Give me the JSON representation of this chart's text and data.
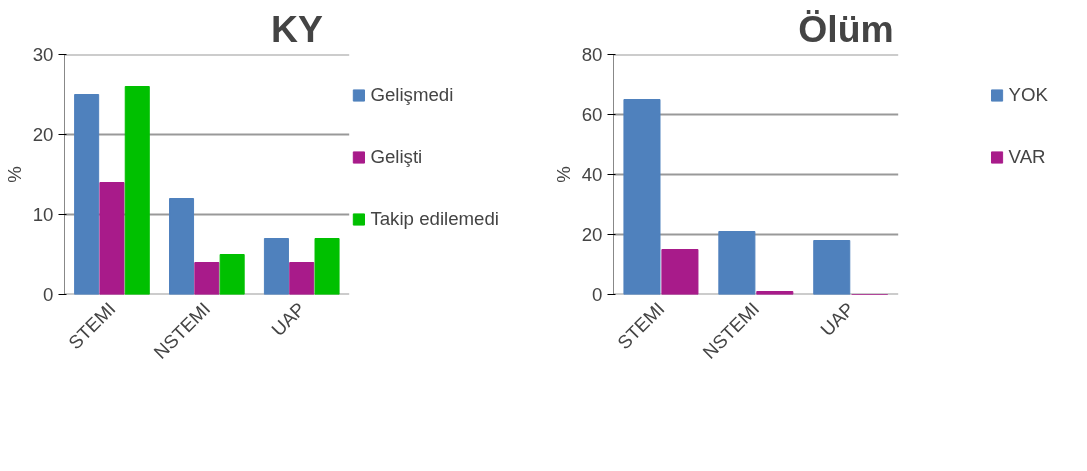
{
  "chart_data": [
    {
      "type": "bar",
      "title": "KY",
      "ylabel": "%",
      "categories": [
        "STEMI",
        "NSTEMI",
        "UAP"
      ],
      "series": [
        {
          "name": "Gelişmedi",
          "color": "#4f81bd",
          "values": [
            25,
            12,
            7
          ]
        },
        {
          "name": "Gelişti",
          "color": "#a81b8a",
          "values": [
            14,
            4,
            4
          ]
        },
        {
          "name": "Takip edilemedi",
          "color": "#00c000",
          "values": [
            26,
            5,
            7
          ]
        }
      ],
      "ylim": [
        0,
        30
      ],
      "yticks": [
        0,
        10,
        20,
        30
      ],
      "grid": "y",
      "legend": "right"
    },
    {
      "type": "bar",
      "title": "Ölüm",
      "ylabel": "%",
      "categories": [
        "STEMI",
        "NSTEMI",
        "UAP"
      ],
      "series": [
        {
          "name": "YOK",
          "color": "#4f81bd",
          "values": [
            65,
            21,
            18
          ]
        },
        {
          "name": "VAR",
          "color": "#a81b8a",
          "values": [
            15,
            1,
            0
          ]
        }
      ],
      "ylim": [
        0,
        80
      ],
      "yticks": [
        0,
        20,
        40,
        60,
        80
      ],
      "grid": "y",
      "legend": "right"
    }
  ]
}
